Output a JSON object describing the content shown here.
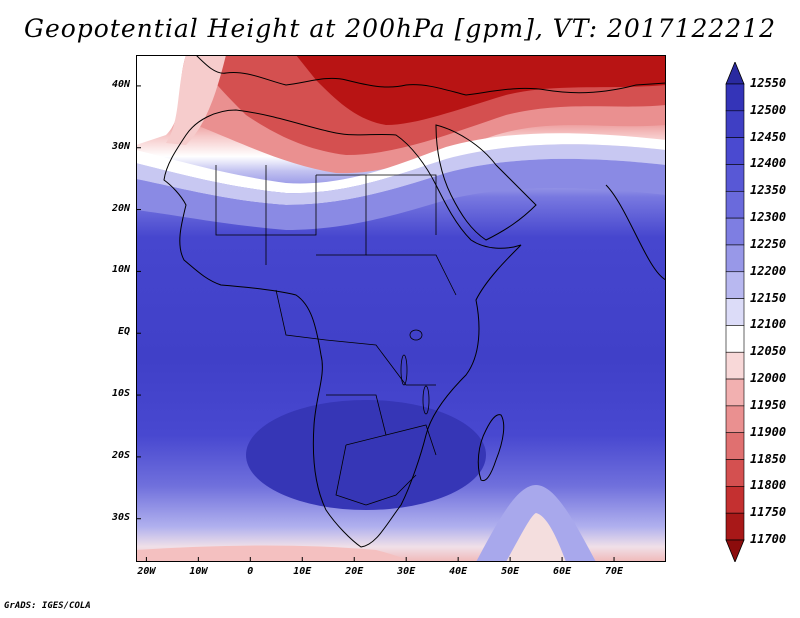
{
  "title": "Geopotential Height at 200hPa [gpm], VT: 2017122212",
  "footer": "GrADS: IGES/COLA",
  "map": {
    "variable": "Geopotential Height",
    "level": "200hPa",
    "units": "gpm",
    "valid_time": "2017122212",
    "lon_range": [
      -22,
      80
    ],
    "lat_range": [
      -37,
      45
    ],
    "lat_ticks": [
      {
        "value": 40,
        "label": "40N"
      },
      {
        "value": 30,
        "label": "30N"
      },
      {
        "value": 20,
        "label": "20N"
      },
      {
        "value": 10,
        "label": "10N"
      },
      {
        "value": 0,
        "label": "EQ"
      },
      {
        "value": -10,
        "label": "10S"
      },
      {
        "value": -20,
        "label": "20S"
      },
      {
        "value": -30,
        "label": "30S"
      }
    ],
    "lon_ticks": [
      {
        "value": -20,
        "label": "20W"
      },
      {
        "value": -10,
        "label": "10W"
      },
      {
        "value": 0,
        "label": "0"
      },
      {
        "value": 10,
        "label": "10E"
      },
      {
        "value": 20,
        "label": "20E"
      },
      {
        "value": 30,
        "label": "30E"
      },
      {
        "value": 40,
        "label": "40E"
      },
      {
        "value": 50,
        "label": "50E"
      },
      {
        "value": 60,
        "label": "60E"
      },
      {
        "value": 70,
        "label": "70E"
      }
    ]
  },
  "colorbar": {
    "levels": [
      "12550",
      "12500",
      "12450",
      "12400",
      "12350",
      "12300",
      "12250",
      "12200",
      "12150",
      "12100",
      "12050",
      "12000",
      "11950",
      "11900",
      "11850",
      "11800",
      "11750",
      "11700"
    ],
    "colors": [
      "#2a2aa0",
      "#3434b8",
      "#3f3fc4",
      "#4a4ad0",
      "#5858d6",
      "#6a6adc",
      "#7e7ee2",
      "#9898e8",
      "#b8b8f0",
      "#dcdcf8",
      "#ffffff",
      "#f8d8d8",
      "#f2b0b0",
      "#ea9090",
      "#e07070",
      "#d45050",
      "#c43030",
      "#a81818",
      "#8c0c0c"
    ]
  }
}
